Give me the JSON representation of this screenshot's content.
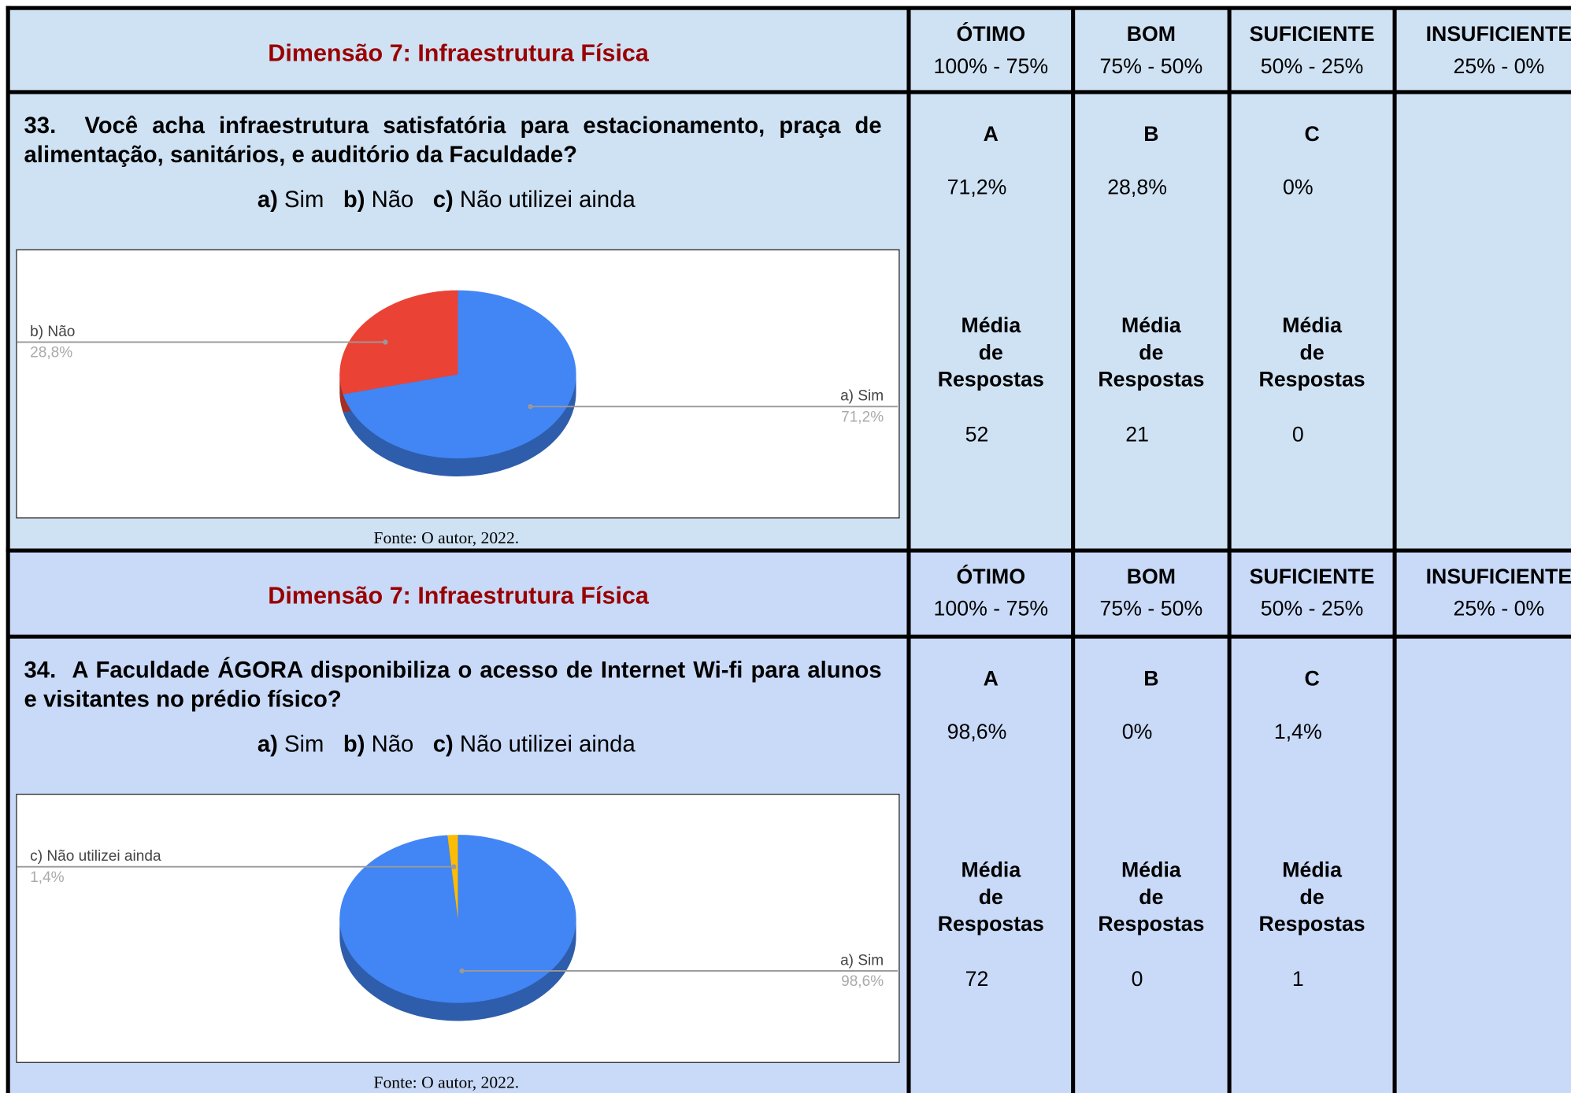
{
  "sections": [
    {
      "header": {
        "title": "Dimensão 7: Infraestrutura Física",
        "columns": [
          {
            "name": "ÓTIMO",
            "range": "100% - 75%"
          },
          {
            "name": "BOM",
            "range": "75% - 50%"
          },
          {
            "name": "SUFICIENTE",
            "range": "50% - 25%"
          },
          {
            "name": "INSUFICIENTE",
            "range": "25% - 0%"
          }
        ]
      },
      "question": {
        "number": "33.",
        "text": "Você acha infraestrutura satisfatória para estacionamento, praça de alimentação, sanitários, e auditório da Faculdade?",
        "options": [
          {
            "key": "a)",
            "text": "Sim"
          },
          {
            "key": "b)",
            "text": "Não"
          },
          {
            "key": "c)",
            "text": "Não utilizei ainda"
          }
        ]
      },
      "chart_data": {
        "type": "pie",
        "labels": [
          "a) Sim",
          "b) Não"
        ],
        "values": [
          71.2,
          28.8
        ],
        "value_labels": [
          "71,2%",
          "28,8%"
        ],
        "colors": [
          "#4285f4",
          "#ea4335"
        ]
      },
      "source": "Fonte: O autor, 2022.",
      "results": [
        {
          "letter": "A",
          "percent": "71,2%",
          "label": [
            "Média",
            "de",
            "Respostas"
          ],
          "count": "52"
        },
        {
          "letter": "B",
          "percent": "28,8%",
          "label": [
            "Média",
            "de",
            "Respostas"
          ],
          "count": "21"
        },
        {
          "letter": "C",
          "percent": "0%",
          "label": [
            "Média",
            "de",
            "Respostas"
          ],
          "count": "0"
        }
      ]
    },
    {
      "header": {
        "title": "Dimensão 7: Infraestrutura Física",
        "columns": [
          {
            "name": "ÓTIMO",
            "range": "100% - 75%"
          },
          {
            "name": "BOM",
            "range": "75% - 50%"
          },
          {
            "name": "SUFICIENTE",
            "range": "50% - 25%"
          },
          {
            "name": "INSUFICIENTE",
            "range": "25% - 0%"
          }
        ]
      },
      "question": {
        "number": "34.",
        "text": "A Faculdade ÁGORA disponibiliza o acesso de Internet Wi-fi para alunos e visitantes no prédio físico?",
        "options": [
          {
            "key": "a)",
            "text": "Sim"
          },
          {
            "key": "b)",
            "text": "Não"
          },
          {
            "key": "c)",
            "text": "Não utilizei ainda"
          }
        ]
      },
      "chart_data": {
        "type": "pie",
        "labels": [
          "a) Sim",
          "c) Não utilizei ainda"
        ],
        "values": [
          98.6,
          1.4
        ],
        "value_labels": [
          "98,6%",
          "1,4%"
        ],
        "colors": [
          "#4285f4",
          "#fbbc04"
        ]
      },
      "source": "Fonte: O autor, 2022.",
      "results": [
        {
          "letter": "A",
          "percent": "98,6%",
          "label": [
            "Média",
            "de",
            "Respostas"
          ],
          "count": "72"
        },
        {
          "letter": "B",
          "percent": "0%",
          "label": [
            "Média",
            "de",
            "Respostas"
          ],
          "count": "0"
        },
        {
          "letter": "C",
          "percent": "1,4%",
          "label": [
            "Média",
            "de",
            "Respostas"
          ],
          "count": "1"
        }
      ]
    }
  ]
}
